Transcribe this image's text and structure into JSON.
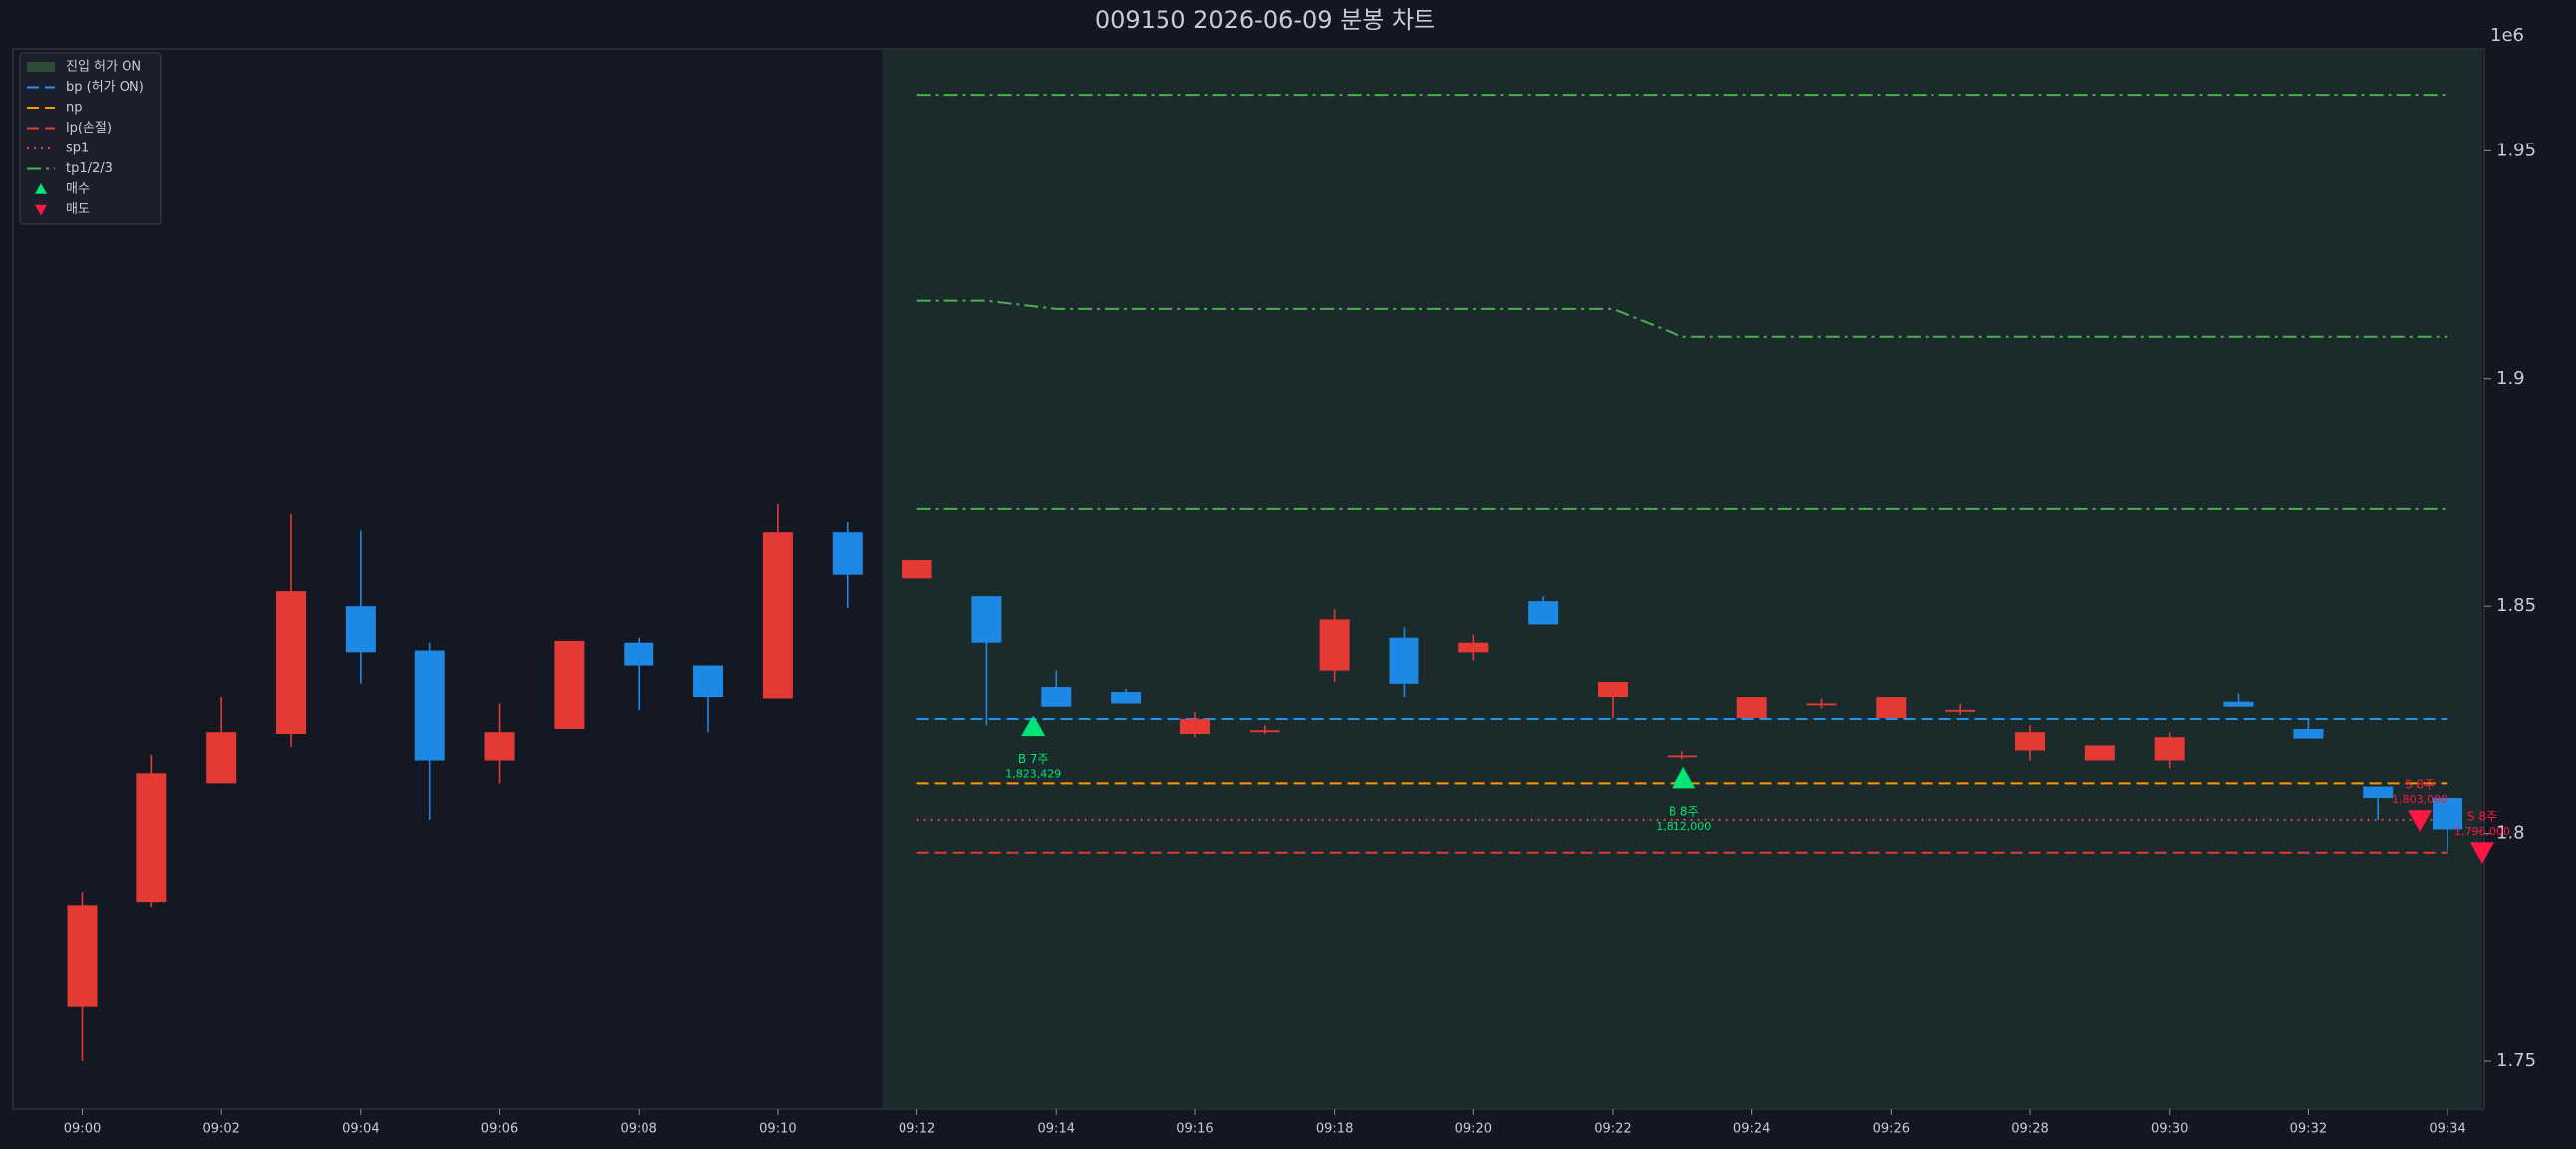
{
  "chart_data": {
    "type": "candlestick",
    "title": "009150  2026-06-09  분봉 차트",
    "y_offset_label": "1e6",
    "categories": [
      "09:00",
      null,
      "09:02",
      null,
      "09:04",
      null,
      "09:06",
      null,
      "09:08",
      null,
      "09:10",
      null,
      "09:12",
      null,
      "09:14",
      null,
      "09:16",
      null,
      "09:18",
      null,
      "09:20",
      null,
      "09:22",
      null,
      "09:24",
      null,
      "09:26",
      null,
      "09:28",
      null,
      "09:30",
      null,
      "09:32",
      null,
      "09:34"
    ],
    "open": [
      1.7619,
      1.785,
      1.811,
      1.8218,
      1.85,
      1.8403,
      1.816,
      1.8229,
      1.842,
      1.837,
      1.8298,
      1.8662,
      1.8561,
      1.8522,
      1.8323,
      1.8312,
      1.8218,
      1.8222,
      1.8359,
      1.8431,
      1.8399,
      1.8511,
      1.8301,
      1.8167,
      1.8255,
      1.8283,
      1.8255,
      1.8269,
      1.8182,
      1.816,
      1.816,
      1.8291,
      1.8229,
      1.8103,
      1.8078
    ],
    "high": [
      1.7872,
      1.8172,
      1.8301,
      1.8702,
      1.8666,
      1.842,
      1.8287,
      1.8424,
      1.8431,
      1.837,
      1.8724,
      1.8684,
      1.8601,
      1.8522,
      1.8359,
      1.8319,
      1.8269,
      1.8237,
      1.8493,
      1.8453,
      1.8438,
      1.8522,
      1.8334,
      1.8181,
      1.8301,
      1.8298,
      1.8301,
      1.8287,
      1.8237,
      1.8193,
      1.8222,
      1.8309,
      1.8251,
      1.8103,
      1.8078
    ],
    "low": [
      1.75,
      1.7839,
      1.811,
      1.819,
      1.833,
      1.803,
      1.811,
      1.8229,
      1.8273,
      1.8222,
      1.8298,
      1.8496,
      1.8561,
      1.8237,
      1.828,
      1.8287,
      1.8211,
      1.8218,
      1.8334,
      1.8301,
      1.8381,
      1.846,
      1.8255,
      1.8163,
      1.8255,
      1.8276,
      1.8255,
      1.8262,
      1.816,
      1.816,
      1.8143,
      1.828,
      1.8208,
      1.803,
      1.7962
    ],
    "close": [
      1.7843,
      1.8132,
      1.8222,
      1.8533,
      1.8399,
      1.816,
      1.8222,
      1.8424,
      1.837,
      1.8301,
      1.8662,
      1.8569,
      1.8601,
      1.842,
      1.828,
      1.8287,
      1.8251,
      1.8226,
      1.8471,
      1.833,
      1.842,
      1.846,
      1.8334,
      1.8171,
      1.8301,
      1.8287,
      1.8301,
      1.8273,
      1.8222,
      1.8193,
      1.8211,
      1.828,
      1.8208,
      1.8078,
      1.8009
    ],
    "up_color": "#e53935",
    "down_color": "#1e88e5",
    "ylim": [
      1.7395,
      1.9724
    ],
    "yticks": [
      1.75,
      1.8,
      1.85,
      1.9,
      1.95
    ],
    "shade": {
      "name": "진입 허가 ON",
      "color": "#1b2a2a",
      "legend_color": "#2e4a38"
    },
    "lines": [
      {
        "name": "bp (허가 ON)",
        "color": "#2196f3",
        "style": "dashed",
        "values": [
          null,
          null,
          null,
          null,
          null,
          null,
          null,
          null,
          null,
          null,
          null,
          null,
          1.8251,
          1.8251,
          1.8251,
          1.8251,
          1.8251,
          1.8251,
          1.8251,
          1.8251,
          1.8251,
          1.8251,
          1.8251,
          1.8251,
          1.8251,
          1.8251,
          1.8251,
          1.8251,
          1.8251,
          1.8251,
          1.8251,
          1.8251,
          1.8251,
          1.8251,
          1.8251
        ]
      },
      {
        "name": "np",
        "color": "#ff9800",
        "style": "dashed",
        "values": [
          null,
          null,
          null,
          null,
          null,
          null,
          null,
          null,
          null,
          null,
          null,
          null,
          1.811,
          1.811,
          1.811,
          1.811,
          1.811,
          1.811,
          1.811,
          1.811,
          1.811,
          1.811,
          1.811,
          1.811,
          1.811,
          1.811,
          1.811,
          1.811,
          1.811,
          1.811,
          1.811,
          1.811,
          1.811,
          1.811,
          1.811
        ]
      },
      {
        "name": "lp(손절)",
        "color": "#e53935",
        "style": "dashed",
        "values": [
          null,
          null,
          null,
          null,
          null,
          null,
          null,
          null,
          null,
          null,
          null,
          null,
          1.7958,
          1.7958,
          1.7958,
          1.7958,
          1.7958,
          1.7958,
          1.7958,
          1.7958,
          1.7958,
          1.7958,
          1.7958,
          1.7958,
          1.7958,
          1.7958,
          1.7958,
          1.7958,
          1.7958,
          1.7958,
          1.7958,
          1.7958,
          1.7958,
          1.7958,
          1.7958
        ]
      },
      {
        "name": "sp1",
        "color": "#e0435a",
        "style": "dotted",
        "values": [
          null,
          null,
          null,
          null,
          null,
          null,
          null,
          null,
          null,
          null,
          null,
          null,
          1.803,
          1.803,
          1.803,
          1.803,
          1.803,
          1.803,
          1.803,
          1.803,
          1.803,
          1.803,
          1.803,
          1.803,
          1.803,
          1.803,
          1.803,
          1.803,
          1.803,
          1.803,
          1.803,
          1.803,
          1.803,
          1.803,
          1.803
        ]
      },
      {
        "name": "tp1/2/3",
        "color": "#4caf50",
        "style": "dashdot",
        "lines": [
          [
            null,
            null,
            null,
            null,
            null,
            null,
            null,
            null,
            null,
            null,
            null,
            null,
            1.8713,
            1.8713,
            1.8713,
            1.8713,
            1.8713,
            1.8713,
            1.8713,
            1.8713,
            1.8713,
            1.8713,
            1.8713,
            1.8713,
            1.8713,
            1.8713,
            1.8713,
            1.8713,
            1.8713,
            1.8713,
            1.8713,
            1.8713,
            1.8713,
            1.8713,
            1.8713
          ],
          [
            null,
            null,
            null,
            null,
            null,
            null,
            null,
            null,
            null,
            null,
            null,
            null,
            1.9171,
            1.9171,
            1.9153,
            1.9153,
            1.9153,
            1.9153,
            1.9153,
            1.9153,
            1.9153,
            1.9153,
            1.9153,
            1.9092,
            1.9092,
            1.9092,
            1.9092,
            1.9092,
            1.9092,
            1.9092,
            1.9092,
            1.9092,
            1.9092,
            1.9092,
            1.9092
          ],
          [
            null,
            null,
            null,
            null,
            null,
            null,
            null,
            null,
            null,
            null,
            null,
            null,
            1.9623,
            1.9623,
            1.9623,
            1.9623,
            1.9623,
            1.9623,
            1.9623,
            1.9623,
            1.9623,
            1.9623,
            1.9623,
            1.9623,
            1.9623,
            1.9623,
            1.9623,
            1.9623,
            1.9623,
            1.9623,
            1.9623,
            1.9623,
            1.9623,
            1.9623,
            1.9623
          ]
        ]
      }
    ],
    "markers": [
      {
        "name": "매수",
        "color": "#00e676",
        "marker": "up",
        "x": [
          13.67,
          23.02
        ],
        "values": [
          1.823429,
          1.812
        ],
        "labels": [
          "B 7주",
          "B 8주"
        ],
        "value_labels": [
          "1,823,429",
          "1,812,000"
        ]
      },
      {
        "name": "매도",
        "color": "#ff1744",
        "marker": "down",
        "x": [
          33.6,
          34.5
        ],
        "values": [
          1.803,
          1.796
        ],
        "labels": [
          "S 8주",
          "S 8주"
        ],
        "value_labels": [
          "1,803,000",
          "1,796,000"
        ]
      }
    ],
    "legend": "upper left"
  }
}
